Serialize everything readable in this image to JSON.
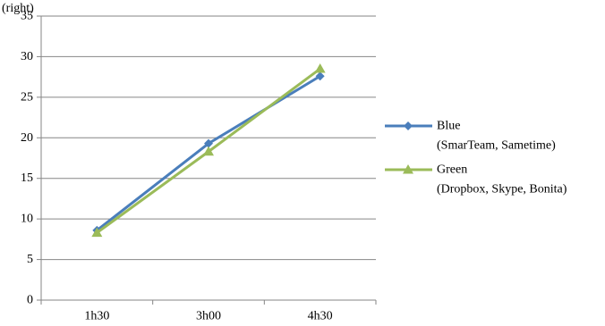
{
  "chart_data": {
    "type": "line",
    "top_fragment": "(right)",
    "categories": [
      "1h30",
      "3h00",
      "4h30"
    ],
    "ylim": [
      0,
      35
    ],
    "yticks": [
      0,
      5,
      10,
      15,
      20,
      25,
      30,
      35
    ],
    "grid": true,
    "legend_position": "right",
    "series": [
      {
        "name": "Blue",
        "name_detail": "(SmarTeam, Sametime)",
        "values": [
          8.6,
          19.3,
          27.6
        ],
        "color": "#4a7ebb",
        "marker": "diamond"
      },
      {
        "name": "Green",
        "name_detail": "(Dropbox, Skype, Bonita)",
        "values": [
          8.3,
          18.3,
          28.5
        ],
        "color": "#9bbb59",
        "marker": "triangle"
      }
    ]
  }
}
